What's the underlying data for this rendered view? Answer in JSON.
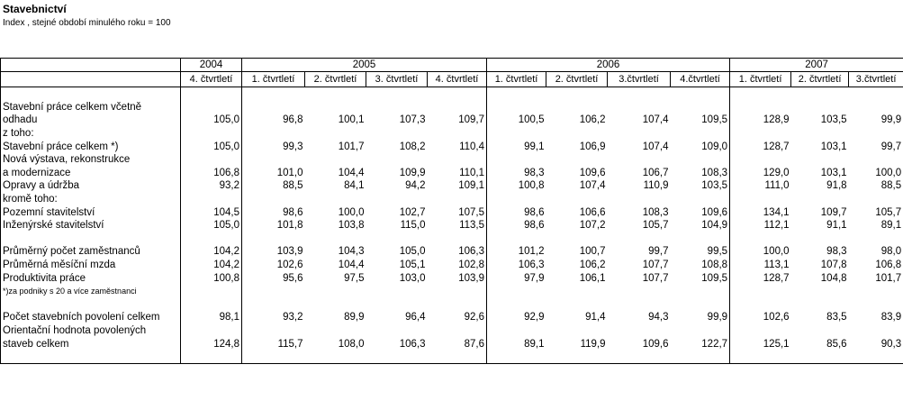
{
  "header": {
    "title": "Stavebnictví",
    "subtitle": "Index , stejné období minulého roku = 100"
  },
  "table": {
    "years": [
      "2004",
      "2005",
      "2006",
      "2007"
    ],
    "quarters": [
      "4. čtvrtletí",
      "1. čtvrtletí",
      "2. čtvrtletí",
      "3. čtvrtletí",
      "4. čtvrtletí",
      "1. čtvrtletí",
      "2. čtvrtletí",
      "3.čtvrtletí",
      "4.čtvrtletí",
      "1. čtvrtletí",
      "2. čtvrtletí",
      "3.čtvrtletí"
    ],
    "rows": [
      {
        "label": "Stavební práce celkem včetně"
      },
      {
        "label": "odhadu",
        "values": [
          "105,0",
          "96,8",
          "100,1",
          "107,3",
          "109,7",
          "100,5",
          "106,2",
          "107,4",
          "109,5",
          "128,9",
          "103,5",
          "99,9"
        ]
      },
      {
        "label": "z toho:"
      },
      {
        "label": "Stavební práce celkem *)",
        "values": [
          "105,0",
          "99,3",
          "101,7",
          "108,2",
          "110,4",
          "99,1",
          "106,9",
          "107,4",
          "109,0",
          "128,7",
          "103,1",
          "99,7"
        ]
      },
      {
        "label": "Nová výstava, rekonstrukce"
      },
      {
        "label": "a modernizace",
        "values": [
          "106,8",
          "101,0",
          "104,4",
          "109,9",
          "110,1",
          "98,3",
          "109,6",
          "106,7",
          "108,3",
          "129,0",
          "103,1",
          "100,0"
        ]
      },
      {
        "label": "Opravy a údržba",
        "values": [
          "93,2",
          "88,5",
          "84,1",
          "94,2",
          "109,1",
          "100,8",
          "107,4",
          "110,9",
          "103,5",
          "111,0",
          "91,8",
          "88,5"
        ]
      },
      {
        "label": "kromě toho:"
      },
      {
        "label": "Pozemní stavitelství",
        "values": [
          "104,5",
          "98,6",
          "100,0",
          "102,7",
          "107,5",
          "98,6",
          "106,6",
          "108,3",
          "109,6",
          "134,1",
          "109,7",
          "105,7"
        ]
      },
      {
        "label": "Inženýrské stavitelství",
        "values": [
          "105,0",
          "101,8",
          "103,8",
          "115,0",
          "113,5",
          "98,6",
          "107,2",
          "105,7",
          "104,9",
          "112,1",
          "91,1",
          "89,1"
        ]
      },
      {
        "label": "Průměrný počet zaměstnanců",
        "values": [
          "104,2",
          "103,9",
          "104,3",
          "105,0",
          "106,3",
          "101,2",
          "100,7",
          "99,7",
          "99,5",
          "100,0",
          "98,3",
          "98,0"
        ]
      },
      {
        "label": "Průměrná měsíční mzda",
        "values": [
          "104,2",
          "102,6",
          "104,4",
          "105,1",
          "102,8",
          "106,3",
          "106,2",
          "107,7",
          "108,8",
          "113,1",
          "107,8",
          "106,8"
        ]
      },
      {
        "label": "Produktivita práce",
        "values": [
          "100,8",
          "95,6",
          "97,5",
          "103,0",
          "103,9",
          "97,9",
          "106,1",
          "107,7",
          "109,5",
          "128,7",
          "104,8",
          "101,7"
        ]
      },
      {
        "label": "Počet stavebních povolení celkem",
        "values": [
          "98,1",
          "93,2",
          "89,9",
          "96,4",
          "92,6",
          "92,9",
          "91,4",
          "94,3",
          "99,9",
          "102,6",
          "83,5",
          "83,9"
        ]
      },
      {
        "label": "Orientační hodnota povolených"
      },
      {
        "label": "staveb celkem",
        "values": [
          "124,8",
          "115,7",
          "108,0",
          "106,3",
          "87,6",
          "89,1",
          "119,9",
          "109,6",
          "122,7",
          "125,1",
          "85,6",
          "90,3"
        ]
      }
    ],
    "footnote": "*)za podniky s 20 a více zaměstnanci"
  }
}
